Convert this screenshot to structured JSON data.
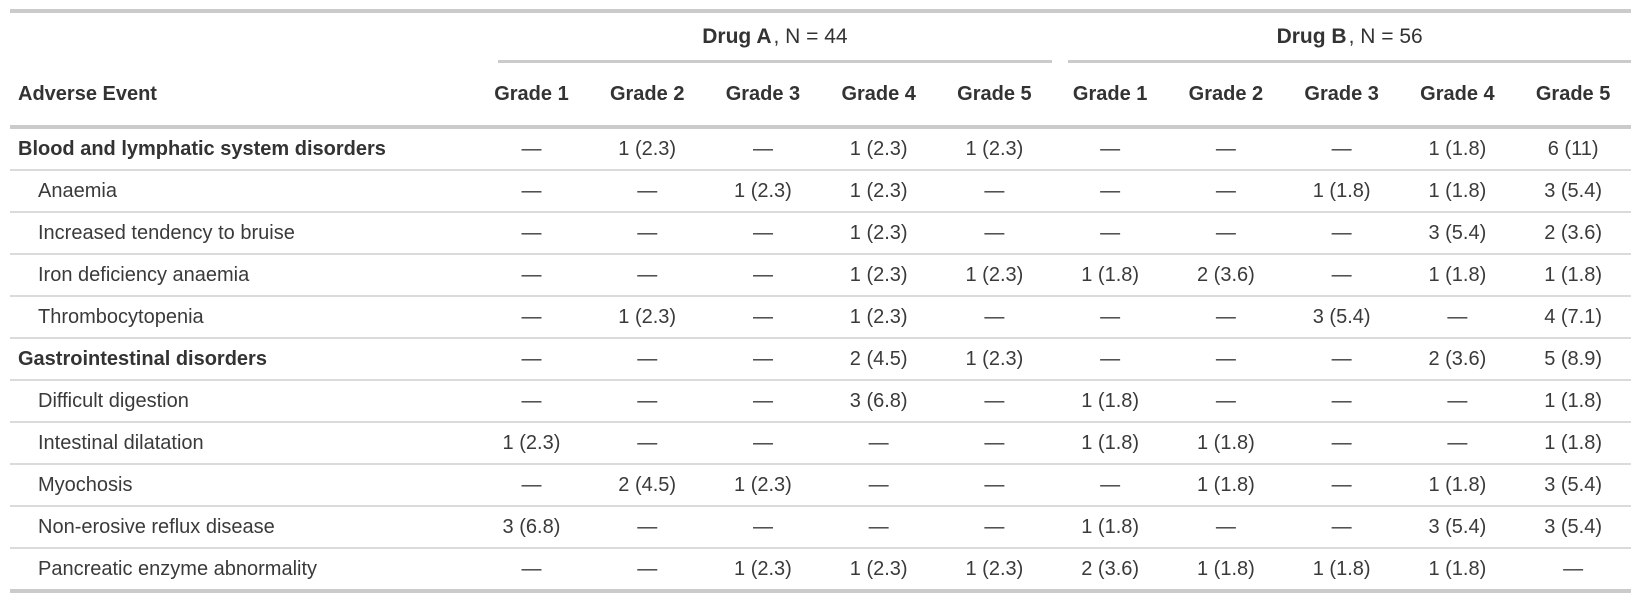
{
  "table": {
    "row_label_header": "Adverse Event",
    "groups": [
      {
        "name": "Drug A",
        "n_suffix": ", N = 44"
      },
      {
        "name": "Drug B",
        "n_suffix": ", N = 56"
      }
    ],
    "grade_labels": [
      "Grade 1",
      "Grade 2",
      "Grade 3",
      "Grade 4",
      "Grade 5"
    ],
    "empty_marker": "—",
    "rows": [
      {
        "label": "Blood and lymphatic system disorders",
        "style": "group",
        "drug_a": [
          "—",
          "1 (2.3)",
          "—",
          "1 (2.3)",
          "1 (2.3)"
        ],
        "drug_b": [
          "—",
          "—",
          "—",
          "1 (1.8)",
          "6 (11)"
        ]
      },
      {
        "label": "Anaemia",
        "style": "sub",
        "drug_a": [
          "—",
          "—",
          "1 (2.3)",
          "1 (2.3)",
          "—"
        ],
        "drug_b": [
          "—",
          "—",
          "1 (1.8)",
          "1 (1.8)",
          "3 (5.4)"
        ]
      },
      {
        "label": "Increased tendency to bruise",
        "style": "sub",
        "drug_a": [
          "—",
          "—",
          "—",
          "1 (2.3)",
          "—"
        ],
        "drug_b": [
          "—",
          "—",
          "—",
          "3 (5.4)",
          "2 (3.6)"
        ]
      },
      {
        "label": "Iron deficiency anaemia",
        "style": "sub",
        "drug_a": [
          "—",
          "—",
          "—",
          "1 (2.3)",
          "1 (2.3)"
        ],
        "drug_b": [
          "1 (1.8)",
          "2 (3.6)",
          "—",
          "1 (1.8)",
          "1 (1.8)"
        ]
      },
      {
        "label": "Thrombocytopenia",
        "style": "sub",
        "drug_a": [
          "—",
          "1 (2.3)",
          "—",
          "1 (2.3)",
          "—"
        ],
        "drug_b": [
          "—",
          "—",
          "3 (5.4)",
          "—",
          "4 (7.1)"
        ]
      },
      {
        "label": "Gastrointestinal disorders",
        "style": "group",
        "drug_a": [
          "—",
          "—",
          "—",
          "2 (4.5)",
          "1 (2.3)"
        ],
        "drug_b": [
          "—",
          "—",
          "—",
          "2 (3.6)",
          "5 (8.9)"
        ]
      },
      {
        "label": "Difficult digestion",
        "style": "sub",
        "drug_a": [
          "—",
          "—",
          "—",
          "3 (6.8)",
          "—"
        ],
        "drug_b": [
          "1 (1.8)",
          "—",
          "—",
          "—",
          "1 (1.8)"
        ]
      },
      {
        "label": "Intestinal dilatation",
        "style": "sub",
        "drug_a": [
          "1 (2.3)",
          "—",
          "—",
          "—",
          "—"
        ],
        "drug_b": [
          "1 (1.8)",
          "1 (1.8)",
          "—",
          "—",
          "1 (1.8)"
        ]
      },
      {
        "label": "Myochosis",
        "style": "sub",
        "drug_a": [
          "—",
          "2 (4.5)",
          "1 (2.3)",
          "—",
          "—"
        ],
        "drug_b": [
          "—",
          "1 (1.8)",
          "—",
          "1 (1.8)",
          "3 (5.4)"
        ]
      },
      {
        "label": "Non-erosive reflux disease",
        "style": "sub",
        "drug_a": [
          "3 (6.8)",
          "—",
          "—",
          "—",
          "—"
        ],
        "drug_b": [
          "1 (1.8)",
          "—",
          "—",
          "3 (5.4)",
          "3 (5.4)"
        ]
      },
      {
        "label": "Pancreatic enzyme abnormality",
        "style": "sub",
        "drug_a": [
          "—",
          "—",
          "1 (2.3)",
          "1 (2.3)",
          "1 (2.3)"
        ],
        "drug_b": [
          "2 (3.6)",
          "1 (1.8)",
          "1 (1.8)",
          "1 (1.8)",
          "—"
        ]
      }
    ],
    "colors": {
      "text": "#3a3a3a",
      "heading_text": "#333333",
      "rule_heavy": "#cbcbcb",
      "rule_light": "#dbdbdb",
      "background": "#ffffff"
    }
  }
}
